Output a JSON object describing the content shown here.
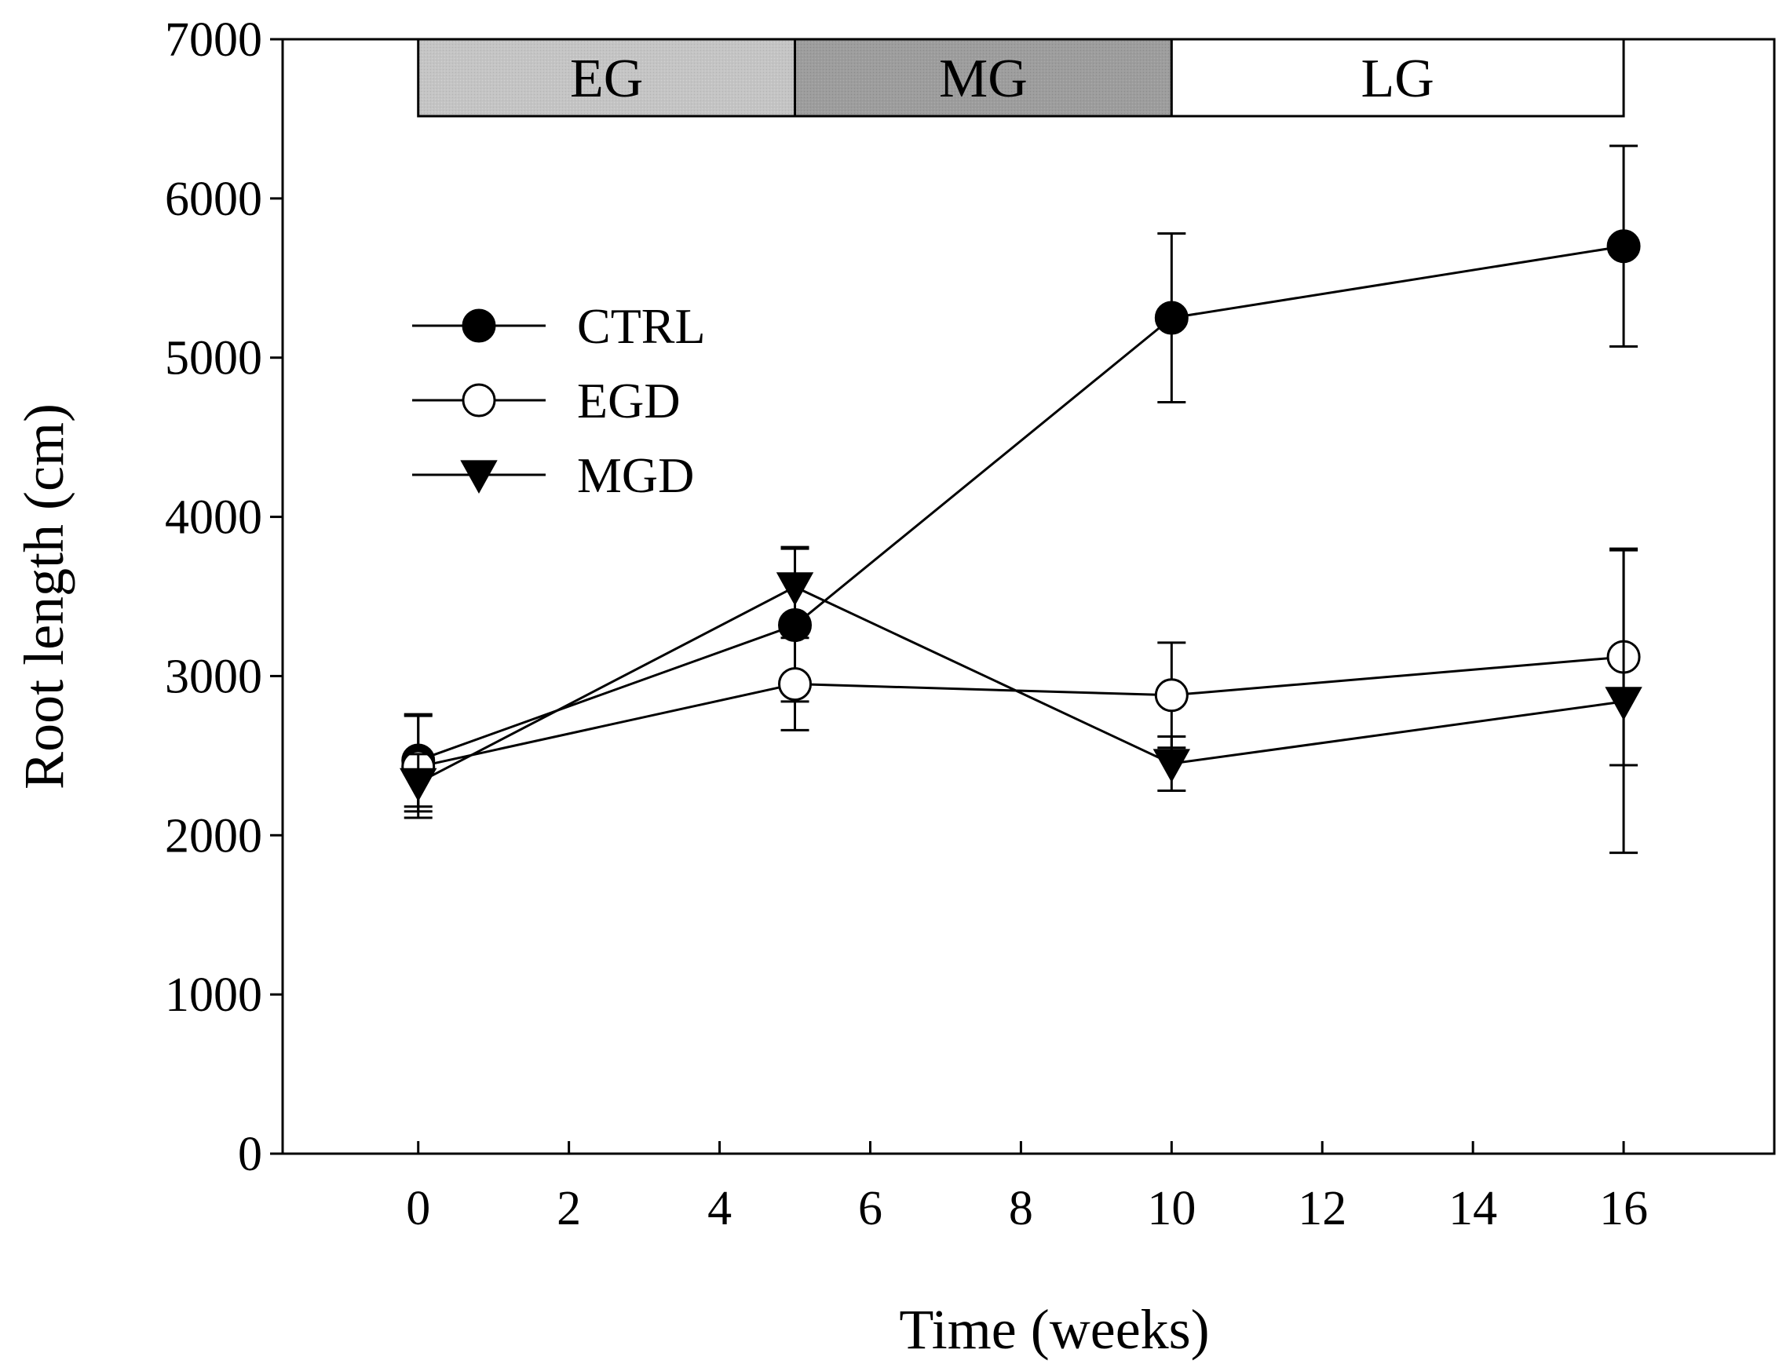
{
  "chart_data": {
    "type": "line",
    "title": "",
    "xlabel": "Time (weeks)",
    "ylabel": "Root length (cm)",
    "xlim": [
      -1.8,
      18
    ],
    "ylim": [
      0,
      7000
    ],
    "xticks": [
      0,
      2,
      4,
      6,
      8,
      10,
      12,
      14,
      16
    ],
    "yticks": [
      0,
      1000,
      2000,
      3000,
      4000,
      5000,
      6000,
      7000
    ],
    "grid": false,
    "legend_position": "upper-left",
    "x": [
      0,
      5,
      10,
      16
    ],
    "series": [
      {
        "name": "CTRL",
        "marker": "filled-circle",
        "values": [
          2470,
          3320,
          5250,
          5700
        ],
        "errors": [
          290,
          480,
          530,
          630
        ]
      },
      {
        "name": "EGD",
        "marker": "open-circle",
        "values": [
          2430,
          2950,
          2880,
          3120
        ],
        "errors": [
          320,
          290,
          330,
          680
        ]
      },
      {
        "name": "MGD",
        "marker": "filled-triangle-down",
        "values": [
          2330,
          3560,
          2450,
          2840
        ],
        "errors": [
          180,
          250,
          170,
          950
        ]
      }
    ],
    "phases": [
      {
        "label": "EG",
        "start": 0,
        "end": 5,
        "color": "#c4c4c4"
      },
      {
        "label": "MG",
        "start": 5,
        "end": 10,
        "color": "#9d9d9d"
      },
      {
        "label": "LG",
        "start": 10,
        "end": 16,
        "color": "#ffffff"
      }
    ]
  }
}
